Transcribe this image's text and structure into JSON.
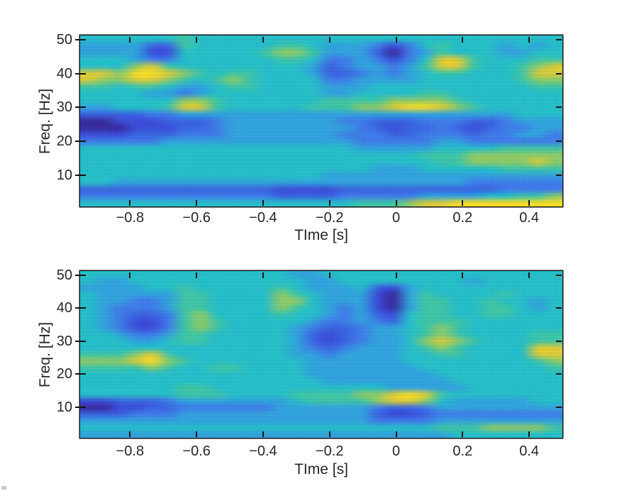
{
  "figure": {
    "background": "#ffffff",
    "text_color": "#262626",
    "axis_color": "#161616"
  },
  "colormap": {
    "name": "parula-like",
    "levels": [
      "#382d9e",
      "#3b4ed8",
      "#3a66e0",
      "#3f7de8",
      "#32a3dc",
      "#27bec8",
      "#3fc5a6",
      "#8cca69",
      "#d9cb3b",
      "#f7dc28"
    ]
  },
  "chart_data": [
    {
      "id": "top-spectrogram",
      "type": "heatmap",
      "title": "",
      "xlabel": "TIme [s]",
      "ylabel": "Freq. [Hz]",
      "x_range": [
        -0.95,
        0.5
      ],
      "y_range": [
        0.8,
        51.2
      ],
      "x_ticks": {
        "values": [
          -0.8,
          -0.6,
          -0.4,
          -0.2,
          0,
          0.2,
          0.4
        ],
        "labels": [
          "−0.8",
          "−0.6",
          "−0.4",
          "−0.2",
          "0",
          "0.2",
          "0.4"
        ]
      },
      "y_ticks": {
        "values": [
          50,
          40,
          30,
          20,
          10
        ],
        "labels": [
          "50",
          "40",
          "30",
          "20",
          "10"
        ]
      },
      "grid": false,
      "col_time_start": -0.95,
      "col_time_step": 0.05,
      "row_freq_top": 50,
      "row_freq_step": -2,
      "value_scale": "digits 0-9 map linearly onto colormap.levels (0=dark blue, 9=bright yellow)",
      "rows": [
        "555555655555555555555555555555",
        "444422655555665444313565554545",
        "444411555556776444203465554455",
        "555433555555665334313588655566",
        "555786555555554234434688655678",
        "887998765665554223434566555688",
        "877887656765555334444555555677",
        "665665445665555444555555555566",
        "555544345555555445555665555555",
        "555555776555555666677776555555",
        "445556886555556667789987655555",
        "222233444444444444444444444555",
        "001112223444444433222333223444",
        "000111223444444443212232123344",
        "111222333444444433322333233443",
        "333334444444444443333344333333",
        "555555555555555554444455556666",
        "555555555555555555555666777777",
        "555555555555555555555566777787",
        "555555555555555555444555556666",
        "555555555555555444444444444444",
        "554444444444444444444444333333",
        "222222222222111122222222223333",
        "333333333333222233333444455667",
        "555555555555555556667889999999"
      ]
    },
    {
      "id": "bottom-spectrogram",
      "type": "heatmap",
      "title": "",
      "xlabel": "TIme [s]",
      "ylabel": "Freq. [Hz]",
      "x_range": [
        -0.95,
        0.5
      ],
      "y_range": [
        0.8,
        51.2
      ],
      "x_ticks": {
        "values": [
          -0.8,
          -0.6,
          -0.4,
          -0.2,
          0,
          0.2,
          0.4
        ],
        "labels": [
          "−0.8",
          "−0.6",
          "−0.4",
          "−0.2",
          "0",
          "0.2",
          "0.4"
        ]
      },
      "y_ticks": {
        "values": [
          50,
          40,
          30,
          20,
          10
        ],
        "labels": [
          "50",
          "40",
          "30",
          "20",
          "10"
        ]
      },
      "grid": false,
      "col_time_start": -0.95,
      "col_time_step": 0.05,
      "row_freq_top": 50,
      "row_freq_step": -2,
      "value_scale": "digits 0-9 map linearly onto colormap.levels (0=dark blue, 9=bright yellow)",
      "rows": [
        "555555555555544555555555555555",
        "544555555555554455555555455555",
        "444455655555654445214555555555",
        "544444665555765444104655556555",
        "544334665555775444104665565545",
        "543334665555765434104665566545",
        "543223675555655434215665566555",
        "543113676555554334325666555555",
        "543113676555543223445676555555",
        "554334665555542123445676555566",
        "555445665555542123445787655566",
        "555555555555543234445676555588",
        "666786555555544344445566555588",
        "777897655555554444445555555567",
        "666676556655554444444555555556",
        "555555555555554444444455555555",
        "555555555555555444444445555555",
        "555555665555555555544444555555",
        "555555666555566667789865555555",
        "112223444444456666788754444455",
        "001122333333444444322344444444",
        "222333444444444444211233333333",
        "444444444444444444333344444444",
        "555555555555555555555566677776",
        "444444444444444444444445555555"
      ]
    }
  ]
}
